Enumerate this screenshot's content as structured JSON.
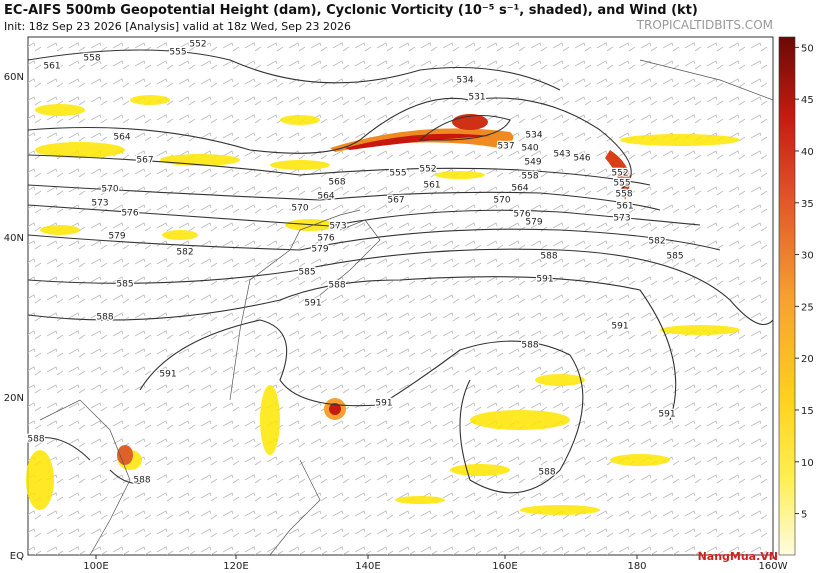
{
  "header": {
    "title": "EC-AIFS 500mb Geopotential Height (dam), Cyclonic Vorticity (10⁻⁵ s⁻¹, shaded), and Wind (kt)",
    "subtitle": "Init: 18z Sep 23 2026   [Analysis]   valid at 18z Wed, Sep 23 2026",
    "site": "TROPICALTIDBITS.COM"
  },
  "map": {
    "lon_labels": [
      "100E",
      "120E",
      "140E",
      "160E",
      "180",
      "160W"
    ],
    "lat_labels": [
      "60N",
      "40N",
      "20N",
      "EQ"
    ],
    "contour_labels": [
      "552",
      "555",
      "558",
      "561",
      "564",
      "567",
      "570",
      "573",
      "576",
      "579",
      "582",
      "585",
      "588",
      "591",
      "588",
      "588",
      "534",
      "531",
      "534",
      "537",
      "540",
      "543",
      "546",
      "549",
      "552",
      "555",
      "558",
      "561",
      "564",
      "567",
      "570",
      "576",
      "579",
      "552",
      "555",
      "558",
      "561",
      "573",
      "582",
      "585",
      "588",
      "591",
      "591",
      "588",
      "585",
      "579",
      "576",
      "573",
      "570",
      "564",
      "568",
      "591",
      "588",
      "591",
      "591",
      "588"
    ]
  },
  "colorbar": {
    "lim": [
      1,
      51
    ],
    "ticks": [
      5,
      10,
      15,
      20,
      25,
      30,
      35,
      40,
      45,
      50
    ]
  },
  "watermark": "NangMua.VN"
}
